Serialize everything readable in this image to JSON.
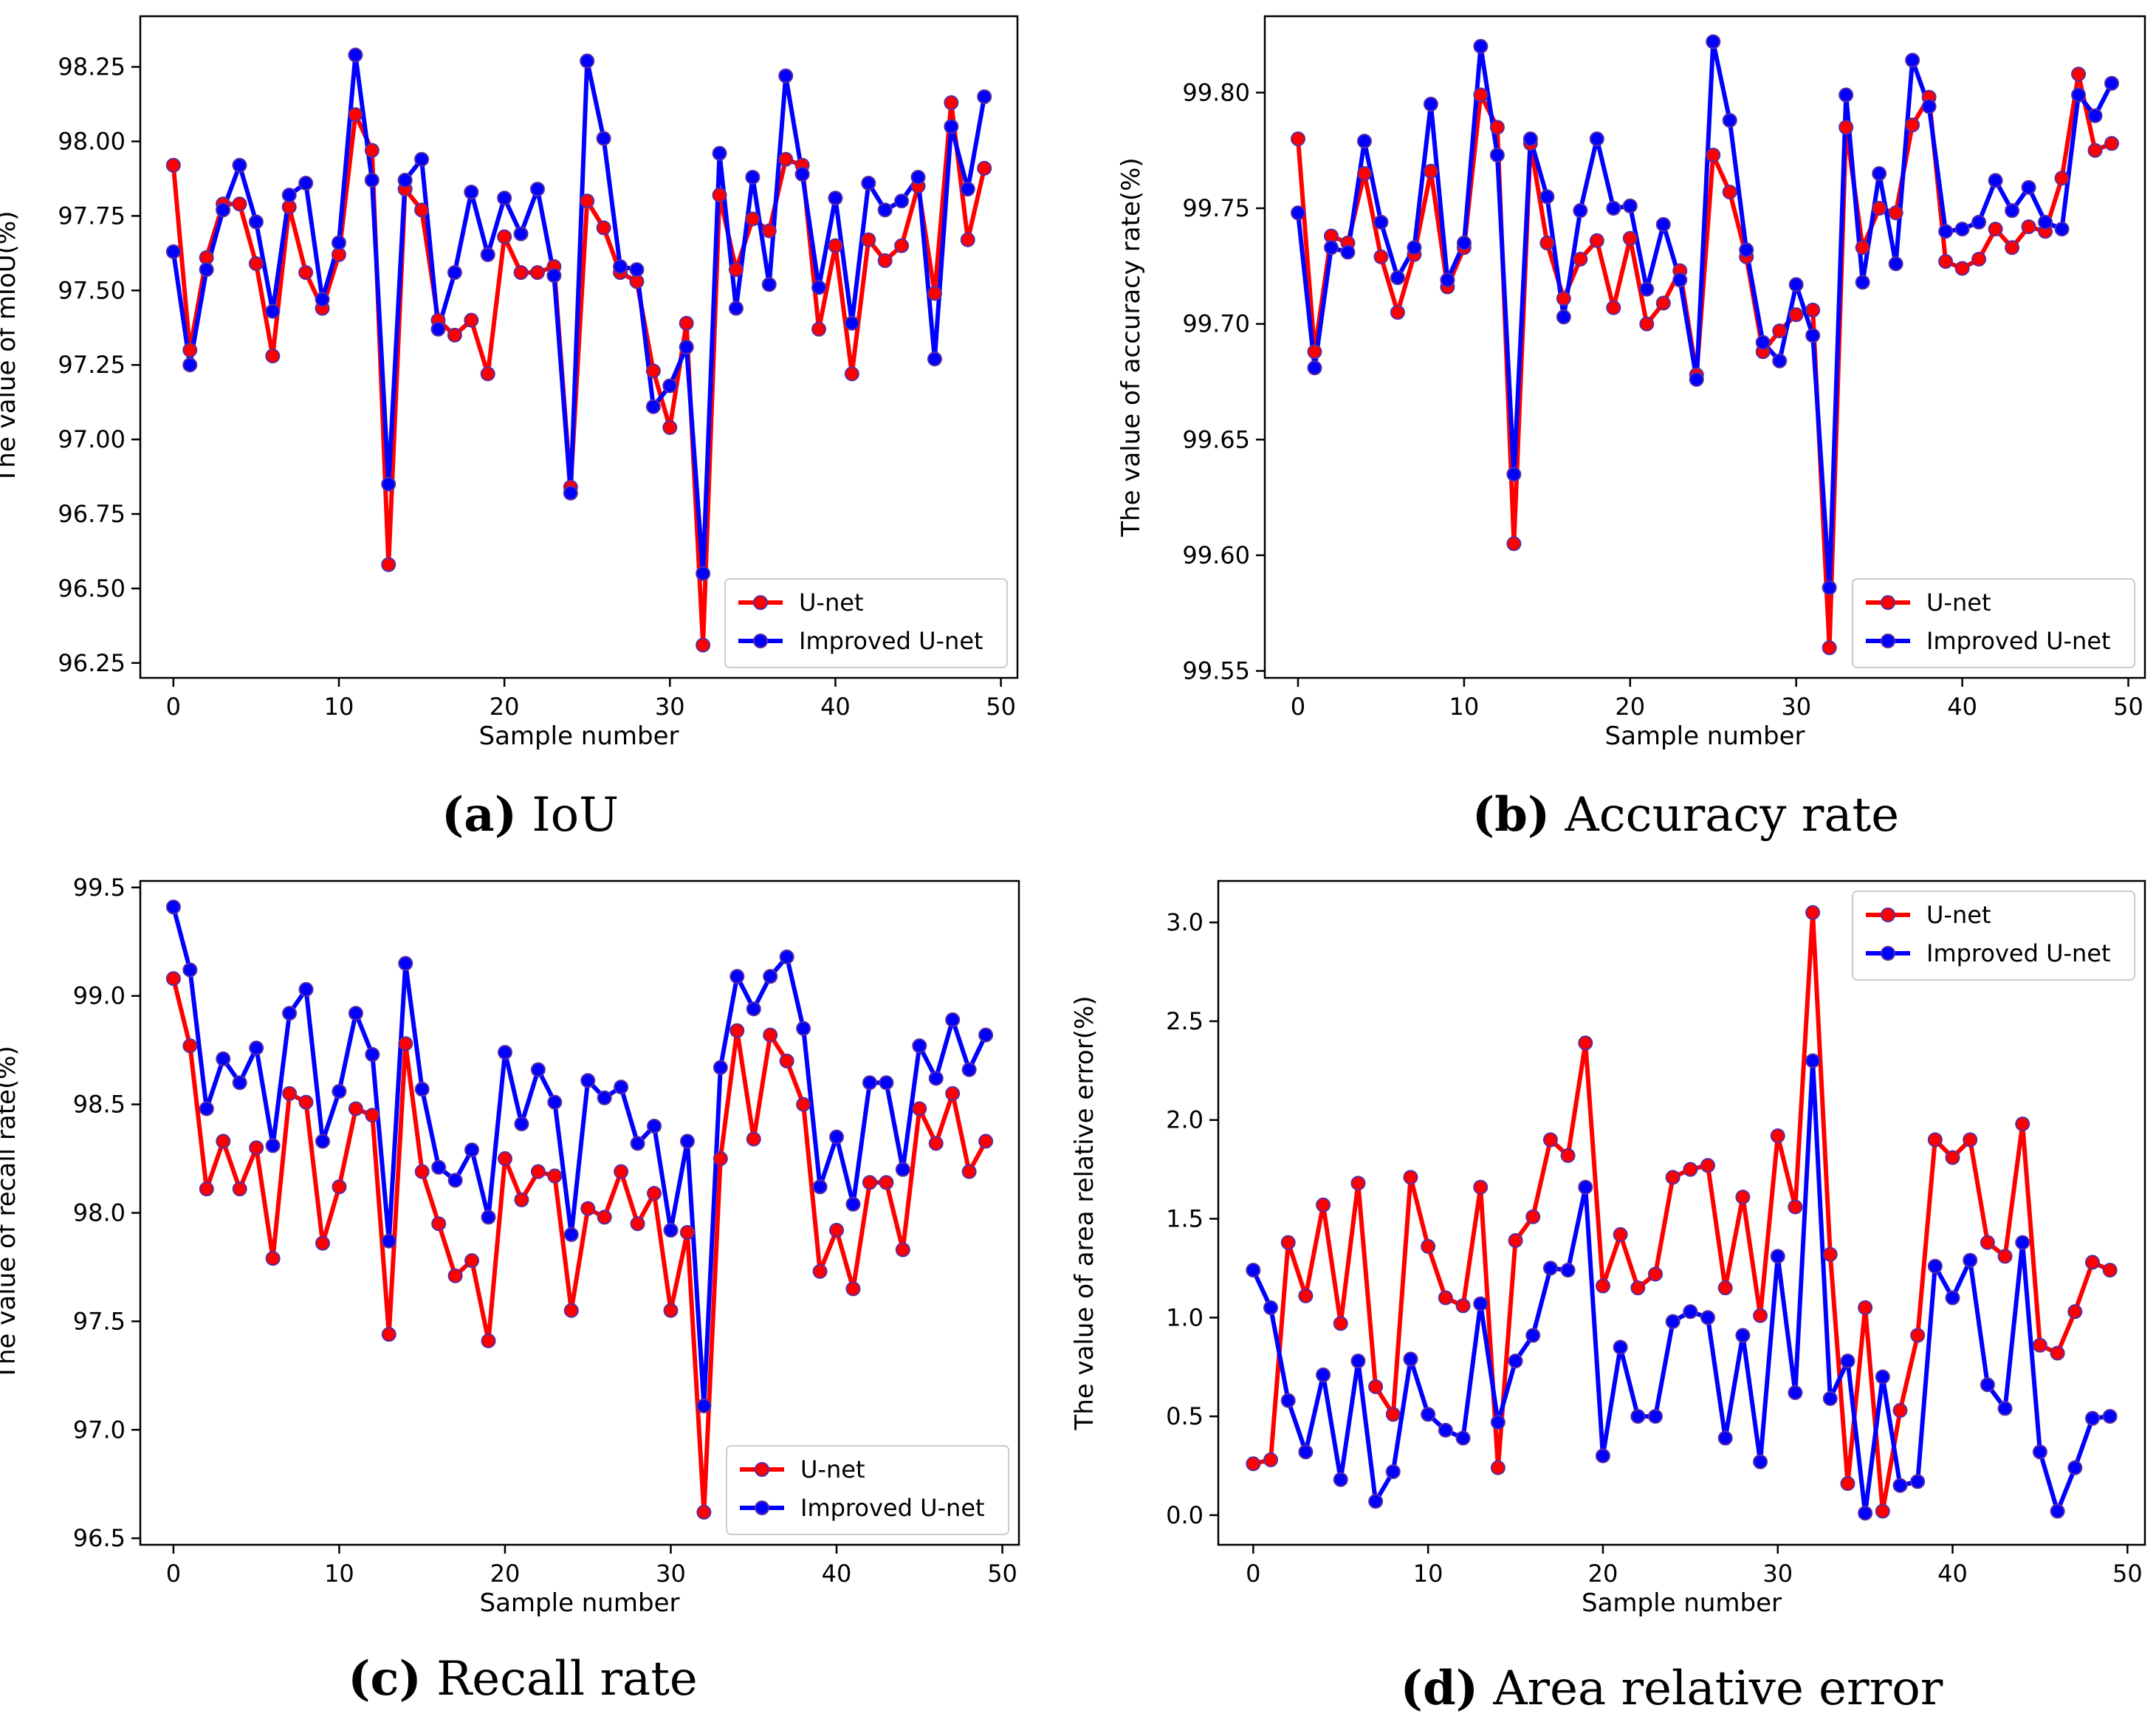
{
  "x_values": [
    0,
    1,
    2,
    3,
    4,
    5,
    6,
    7,
    8,
    9,
    10,
    11,
    12,
    13,
    14,
    15,
    16,
    17,
    18,
    19,
    20,
    21,
    22,
    23,
    24,
    25,
    26,
    27,
    28,
    29,
    30,
    31,
    32,
    33,
    34,
    35,
    36,
    37,
    38,
    39,
    40,
    41,
    42,
    43,
    44,
    45,
    46,
    47,
    48,
    49
  ],
  "colors": {
    "unet": "#ff0000",
    "improved": "#0000ff",
    "marker_edge": "#5a2d9f",
    "axis": "#000000"
  },
  "chart_data": [
    {
      "id": "a",
      "type": "line",
      "caption_label": "(a)",
      "caption_text": "IoU",
      "xlabel": "Sample number",
      "ylabel": "The value of mIoU(%)",
      "xlim": [
        -2,
        51
      ],
      "ylim": [
        96.2,
        98.42
      ],
      "xticks": [
        0,
        10,
        20,
        30,
        40,
        50
      ],
      "yticks": [
        96.25,
        96.5,
        96.75,
        97.0,
        97.25,
        97.5,
        97.75,
        98.0,
        98.25
      ],
      "ytick_labels": [
        "96.25",
        "96.50",
        "96.75",
        "97.00",
        "97.25",
        "97.50",
        "97.75",
        "98.00",
        "98.25"
      ],
      "legend_position": "bottom-right",
      "series": [
        {
          "name": "U-net",
          "color": "#ff0000",
          "values": [
            97.92,
            97.3,
            97.61,
            97.79,
            97.79,
            97.59,
            97.28,
            97.78,
            97.56,
            97.44,
            97.62,
            98.09,
            97.97,
            96.58,
            97.84,
            97.77,
            97.4,
            97.35,
            97.4,
            97.22,
            97.68,
            97.56,
            97.56,
            97.58,
            96.84,
            97.8,
            97.71,
            97.56,
            97.53,
            97.23,
            97.04,
            97.39,
            96.31,
            97.82,
            97.57,
            97.74,
            97.7,
            97.94,
            97.92,
            97.37,
            97.65,
            97.22,
            97.67,
            97.6,
            97.65,
            97.85,
            97.49,
            98.13,
            97.67,
            97.91
          ]
        },
        {
          "name": "Improved U-net",
          "color": "#0000ff",
          "values": [
            97.63,
            97.25,
            97.57,
            97.77,
            97.92,
            97.73,
            97.43,
            97.82,
            97.86,
            97.47,
            97.66,
            98.29,
            97.87,
            96.85,
            97.87,
            97.94,
            97.37,
            97.56,
            97.83,
            97.62,
            97.81,
            97.69,
            97.84,
            97.55,
            96.82,
            98.27,
            98.01,
            97.58,
            97.57,
            97.11,
            97.18,
            97.31,
            96.55,
            97.96,
            97.44,
            97.88,
            97.52,
            98.22,
            97.89,
            97.51,
            97.81,
            97.39,
            97.86,
            97.77,
            97.8,
            97.88,
            97.27,
            98.05,
            97.84,
            98.15
          ]
        }
      ]
    },
    {
      "id": "b",
      "type": "line",
      "caption_label": "(b)",
      "caption_text": "Accuracy rate",
      "xlabel": "Sample number",
      "ylabel": "The value of accuracy rate(%)",
      "xlim": [
        -2,
        51
      ],
      "ylim": [
        99.547,
        99.833
      ],
      "xticks": [
        0,
        10,
        20,
        30,
        40,
        50
      ],
      "yticks": [
        99.55,
        99.6,
        99.65,
        99.7,
        99.75,
        99.8
      ],
      "ytick_labels": [
        "99.55",
        "99.60",
        "99.65",
        "99.70",
        "99.75",
        "99.80"
      ],
      "legend_position": "bottom-right",
      "series": [
        {
          "name": "U-net",
          "color": "#ff0000",
          "values": [
            99.78,
            99.688,
            99.738,
            99.735,
            99.765,
            99.729,
            99.705,
            99.73,
            99.766,
            99.716,
            99.733,
            99.799,
            99.785,
            99.605,
            99.778,
            99.735,
            99.711,
            99.728,
            99.736,
            99.707,
            99.737,
            99.7,
            99.709,
            99.723,
            99.678,
            99.773,
            99.757,
            99.729,
            99.688,
            99.697,
            99.704,
            99.706,
            99.56,
            99.785,
            99.733,
            99.75,
            99.748,
            99.786,
            99.798,
            99.727,
            99.724,
            99.728,
            99.741,
            99.733,
            99.742,
            99.74,
            99.763,
            99.808,
            99.775,
            99.778
          ]
        },
        {
          "name": "Improved U-net",
          "color": "#0000ff",
          "values": [
            99.748,
            99.681,
            99.733,
            99.731,
            99.779,
            99.744,
            99.72,
            99.733,
            99.795,
            99.719,
            99.735,
            99.82,
            99.773,
            99.635,
            99.78,
            99.755,
            99.703,
            99.749,
            99.78,
            99.75,
            99.751,
            99.715,
            99.743,
            99.719,
            99.676,
            99.822,
            99.788,
            99.732,
            99.692,
            99.684,
            99.717,
            99.695,
            99.586,
            99.799,
            99.718,
            99.765,
            99.726,
            99.814,
            99.794,
            99.74,
            99.741,
            99.744,
            99.762,
            99.749,
            99.759,
            99.744,
            99.741,
            99.799,
            99.79,
            99.804
          ]
        }
      ]
    },
    {
      "id": "c",
      "type": "line",
      "caption_label": "(c)",
      "caption_text": "Recall rate",
      "xlabel": "Sample number",
      "ylabel": "The value of recall rate(%)",
      "xlim": [
        -2,
        51
      ],
      "ylim": [
        96.47,
        99.53
      ],
      "xticks": [
        0,
        10,
        20,
        30,
        40,
        50
      ],
      "yticks": [
        96.5,
        97.0,
        97.5,
        98.0,
        98.5,
        99.0,
        99.5
      ],
      "ytick_labels": [
        "96.5",
        "97.0",
        "97.5",
        "98.0",
        "98.5",
        "99.0",
        "99.5"
      ],
      "legend_position": "bottom-right",
      "series": [
        {
          "name": "U-net",
          "color": "#ff0000",
          "values": [
            99.08,
            98.77,
            98.11,
            98.33,
            98.11,
            98.3,
            97.79,
            98.55,
            98.51,
            97.86,
            98.12,
            98.48,
            98.45,
            97.44,
            98.78,
            98.19,
            97.95,
            97.71,
            97.78,
            97.41,
            98.25,
            98.06,
            98.19,
            98.17,
            97.55,
            98.02,
            97.98,
            98.19,
            97.95,
            98.09,
            97.55,
            97.91,
            96.62,
            98.25,
            98.84,
            98.34,
            98.82,
            98.7,
            98.5,
            97.73,
            97.92,
            97.65,
            98.14,
            98.14,
            97.83,
            98.48,
            98.32,
            98.55,
            98.19,
            98.33
          ]
        },
        {
          "name": "Improved U-net",
          "color": "#0000ff",
          "values": [
            99.41,
            99.12,
            98.48,
            98.71,
            98.6,
            98.76,
            98.31,
            98.92,
            99.03,
            98.33,
            98.56,
            98.92,
            98.73,
            97.87,
            99.15,
            98.57,
            98.21,
            98.15,
            98.29,
            97.98,
            98.74,
            98.41,
            98.66,
            98.51,
            97.9,
            98.61,
            98.53,
            98.58,
            98.32,
            98.4,
            97.92,
            98.33,
            97.11,
            98.67,
            99.09,
            98.94,
            99.09,
            99.18,
            98.85,
            98.12,
            98.35,
            98.04,
            98.6,
            98.6,
            98.2,
            98.77,
            98.62,
            98.89,
            98.66,
            98.82
          ]
        }
      ]
    },
    {
      "id": "d",
      "type": "line",
      "caption_label": "(d)",
      "caption_text": "Area relative error",
      "xlabel": "Sample number",
      "ylabel": "The value of area relative error(%)",
      "xlim": [
        -2,
        51
      ],
      "ylim": [
        -0.15,
        3.21
      ],
      "xticks": [
        0,
        10,
        20,
        30,
        40,
        50
      ],
      "yticks": [
        0.0,
        0.5,
        1.0,
        1.5,
        2.0,
        2.5,
        3.0
      ],
      "ytick_labels": [
        "0.0",
        "0.5",
        "1.0",
        "1.5",
        "2.0",
        "2.5",
        "3.0"
      ],
      "legend_position": "top-right",
      "series": [
        {
          "name": "U-net",
          "color": "#ff0000",
          "values": [
            0.26,
            0.28,
            1.38,
            1.11,
            1.57,
            0.97,
            1.68,
            0.65,
            0.51,
            1.71,
            1.36,
            1.1,
            1.06,
            1.66,
            0.24,
            1.39,
            1.51,
            1.9,
            1.82,
            2.39,
            1.16,
            1.42,
            1.15,
            1.22,
            1.71,
            1.75,
            1.77,
            1.15,
            1.61,
            1.01,
            1.92,
            1.56,
            3.05,
            1.32,
            0.16,
            1.05,
            0.02,
            0.53,
            0.91,
            1.9,
            1.81,
            1.9,
            1.38,
            1.31,
            1.98,
            0.86,
            0.82,
            1.03,
            1.28,
            1.24
          ]
        },
        {
          "name": "Improved U-net",
          "color": "#0000ff",
          "values": [
            1.24,
            1.05,
            0.58,
            0.32,
            0.71,
            0.18,
            0.78,
            0.07,
            0.22,
            0.79,
            0.51,
            0.43,
            0.39,
            1.07,
            0.47,
            0.78,
            0.91,
            1.25,
            1.24,
            1.66,
            0.3,
            0.85,
            0.5,
            0.5,
            0.98,
            1.03,
            1.0,
            0.39,
            0.91,
            0.27,
            1.31,
            0.62,
            2.3,
            0.59,
            0.78,
            0.01,
            0.7,
            0.15,
            0.17,
            1.26,
            1.1,
            1.29,
            0.66,
            0.54,
            1.38,
            0.32,
            0.02,
            0.24,
            0.49,
            0.5
          ]
        }
      ]
    }
  ]
}
